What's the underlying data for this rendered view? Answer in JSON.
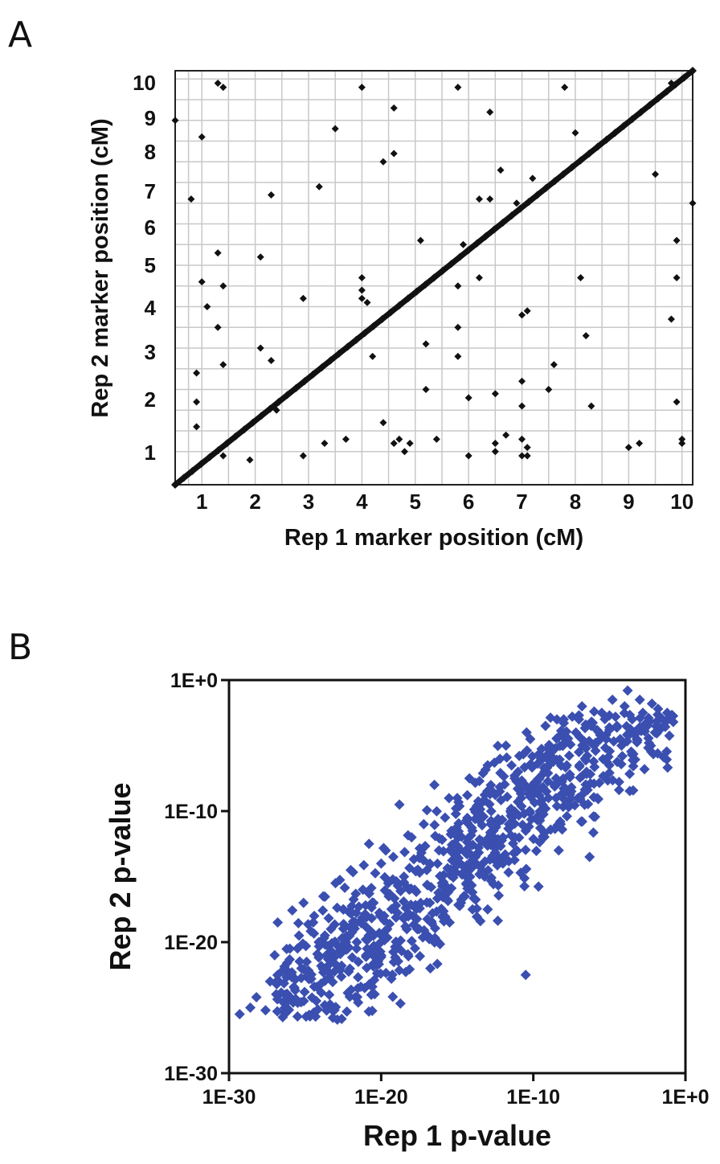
{
  "panels": {
    "a_label": "A",
    "b_label": "B"
  },
  "chart_data": [
    {
      "type": "scatter",
      "panel": "A",
      "title": "",
      "xlabel": "Rep 1 marker position (cM)",
      "ylabel": "Rep 2 marker position (cM)",
      "xlim": [
        0.5,
        10.2
      ],
      "ylim": [
        0.2,
        10.2
      ],
      "grid": true,
      "x_ticks": [
        1,
        2,
        3,
        4,
        5,
        6,
        7,
        8,
        9,
        10
      ],
      "y_ticks": [
        1,
        2,
        3,
        4,
        5,
        6,
        7,
        8,
        9,
        10
      ],
      "tick_labels_x": [
        "1",
        "2",
        "3",
        "4",
        "5",
        "6",
        "7",
        "8",
        "9",
        "10"
      ],
      "tick_labels_y": [
        "1",
        "2",
        "3",
        "4",
        "5",
        "6",
        "7",
        "8",
        "9",
        "10"
      ],
      "marker_color": "#111111",
      "diagonal": {
        "from": [
          0.5,
          0.2
        ],
        "to": [
          10.2,
          10.2
        ],
        "description_value": "dense markers along identity line"
      },
      "points": [
        [
          0.5,
          9.0
        ],
        [
          0.8,
          7.1
        ],
        [
          1.0,
          8.6
        ],
        [
          1.0,
          5.1
        ],
        [
          0.9,
          2.9
        ],
        [
          0.9,
          2.2
        ],
        [
          0.9,
          1.6
        ],
        [
          1.1,
          4.5
        ],
        [
          1.3,
          4.0
        ],
        [
          1.3,
          5.8
        ],
        [
          1.3,
          9.9
        ],
        [
          1.4,
          9.8
        ],
        [
          1.4,
          3.1
        ],
        [
          1.4,
          5.0
        ],
        [
          1.4,
          0.9
        ],
        [
          1.9,
          0.8
        ],
        [
          2.1,
          3.5
        ],
        [
          2.1,
          5.7
        ],
        [
          2.3,
          3.2
        ],
        [
          2.3,
          7.2
        ],
        [
          2.4,
          2.0
        ],
        [
          2.9,
          4.7
        ],
        [
          2.9,
          0.9
        ],
        [
          3.2,
          7.4
        ],
        [
          3.3,
          1.2
        ],
        [
          3.5,
          8.8
        ],
        [
          3.7,
          1.3
        ],
        [
          4.0,
          9.8
        ],
        [
          4.0,
          5.2
        ],
        [
          4.0,
          4.9
        ],
        [
          4.0,
          4.7
        ],
        [
          4.1,
          4.6
        ],
        [
          4.2,
          3.3
        ],
        [
          4.4,
          8.0
        ],
        [
          4.4,
          1.7
        ],
        [
          4.6,
          9.3
        ],
        [
          4.6,
          8.2
        ],
        [
          4.6,
          1.2
        ],
        [
          4.7,
          1.3
        ],
        [
          4.8,
          1.0
        ],
        [
          4.9,
          1.2
        ],
        [
          5.1,
          6.1
        ],
        [
          5.2,
          3.6
        ],
        [
          5.2,
          2.5
        ],
        [
          5.4,
          1.3
        ],
        [
          5.8,
          9.8
        ],
        [
          5.8,
          5.0
        ],
        [
          5.8,
          4.0
        ],
        [
          5.8,
          3.3
        ],
        [
          5.9,
          6.0
        ],
        [
          6.0,
          2.3
        ],
        [
          6.0,
          0.9
        ],
        [
          6.2,
          5.2
        ],
        [
          6.2,
          7.1
        ],
        [
          6.4,
          9.2
        ],
        [
          6.4,
          7.1
        ],
        [
          6.5,
          2.4
        ],
        [
          6.5,
          1.2
        ],
        [
          6.5,
          1.0
        ],
        [
          6.6,
          7.8
        ],
        [
          6.7,
          1.4
        ],
        [
          6.9,
          7.0
        ],
        [
          7.0,
          2.7
        ],
        [
          7.0,
          4.3
        ],
        [
          7.1,
          4.4
        ],
        [
          7.0,
          2.1
        ],
        [
          7.0,
          1.3
        ],
        [
          7.1,
          1.1
        ],
        [
          7.0,
          0.9
        ],
        [
          7.1,
          0.9
        ],
        [
          7.2,
          7.6
        ],
        [
          7.5,
          2.5
        ],
        [
          7.6,
          3.1
        ],
        [
          7.8,
          9.8
        ],
        [
          8.0,
          8.7
        ],
        [
          8.1,
          5.2
        ],
        [
          8.2,
          3.8
        ],
        [
          8.3,
          2.1
        ],
        [
          9.0,
          1.1
        ],
        [
          9.2,
          1.2
        ],
        [
          9.5,
          7.7
        ],
        [
          9.9,
          6.1
        ],
        [
          9.9,
          5.2
        ],
        [
          9.8,
          4.2
        ],
        [
          9.9,
          2.2
        ],
        [
          10.0,
          1.3
        ],
        [
          10.0,
          1.2
        ],
        [
          10.2,
          7.0
        ],
        [
          10.0,
          10.0
        ],
        [
          9.8,
          9.9
        ]
      ]
    },
    {
      "type": "scatter",
      "panel": "B",
      "title": "",
      "xlabel": "Rep 1 p-value",
      "ylabel": "Rep 2 p-value",
      "x_scale": "log",
      "y_scale": "log",
      "xlim": [
        1e-30,
        1
      ],
      "ylim": [
        1e-30,
        1
      ],
      "grid": false,
      "tick_labels_x": [
        "1E-30",
        "1E-20",
        "1E-10",
        "1E+0"
      ],
      "tick_labels_y": [
        "1E-30",
        "1E-20",
        "1E-10",
        "1E+0"
      ],
      "marker_color": "#3a4fb0",
      "points_log10": [
        [
          -29.3,
          -25.5
        ],
        [
          -28.6,
          -25.0
        ],
        [
          -28.2,
          -24.2
        ],
        [
          -27.6,
          -25.2
        ],
        [
          -27.3,
          -23.0
        ],
        [
          -27.0,
          -21.0
        ],
        [
          -26.8,
          -18.5
        ],
        [
          -26.5,
          -22.2
        ],
        [
          -26.3,
          -24.0
        ],
        [
          -26.0,
          -20.5
        ],
        [
          -25.7,
          -23.5
        ],
        [
          -25.4,
          -19.5
        ],
        [
          -25.1,
          -17.0
        ],
        [
          -24.9,
          -21.5
        ],
        [
          -24.6,
          -22.8
        ],
        [
          -24.4,
          -18.0
        ],
        [
          -24.1,
          -20.0
        ],
        [
          -23.8,
          -16.5
        ],
        [
          -23.6,
          -21.0
        ],
        [
          -23.3,
          -19.0
        ],
        [
          -23.0,
          -15.5
        ],
        [
          -22.8,
          -22.0
        ],
        [
          -22.5,
          -17.5
        ],
        [
          -22.2,
          -20.5
        ],
        [
          -22.0,
          -14.5
        ],
        [
          -21.7,
          -18.5
        ],
        [
          -21.5,
          -21.5
        ],
        [
          -21.2,
          -16.0
        ],
        [
          -21.0,
          -19.8
        ],
        [
          -20.8,
          -12.5
        ],
        [
          -20.5,
          -17.0
        ],
        [
          -20.2,
          -20.2
        ],
        [
          -20.0,
          -14.0
        ],
        [
          -19.8,
          -18.0
        ],
        [
          -19.5,
          -16.5
        ],
        [
          -19.2,
          -13.5
        ],
        [
          -19.0,
          -20.0
        ],
        [
          -18.8,
          -9.5
        ],
        [
          -18.5,
          -15.0
        ],
        [
          -18.2,
          -17.8
        ],
        [
          -18.0,
          -12.0
        ],
        [
          -17.8,
          -16.0
        ],
        [
          -17.5,
          -19.0
        ],
        [
          -17.2,
          -11.0
        ],
        [
          -17.0,
          -14.5
        ],
        [
          -16.8,
          -17.0
        ],
        [
          -16.5,
          -8.0
        ],
        [
          -16.2,
          -13.0
        ],
        [
          -16.0,
          -15.5
        ],
        [
          -15.8,
          -10.5
        ],
        [
          -15.5,
          -18.5
        ],
        [
          -15.2,
          -12.5
        ],
        [
          -15.0,
          -9.0
        ],
        [
          -14.8,
          -14.0
        ],
        [
          -14.5,
          -16.5
        ],
        [
          -14.2,
          -7.5
        ],
        [
          -14.0,
          -11.5
        ],
        [
          -13.8,
          -13.5
        ],
        [
          -13.5,
          -9.5
        ],
        [
          -13.2,
          -15.0
        ],
        [
          -13.0,
          -6.5
        ],
        [
          -12.8,
          -11.0
        ],
        [
          -12.5,
          -12.5
        ],
        [
          -12.2,
          -8.5
        ],
        [
          -12.0,
          -14.0
        ],
        [
          -11.8,
          -5.0
        ],
        [
          -11.5,
          -10.0
        ],
        [
          -11.2,
          -12.0
        ],
        [
          -11.0,
          -7.0
        ],
        [
          -10.8,
          -9.0
        ],
        [
          -10.5,
          -11.5
        ],
        [
          -10.2,
          -4.5
        ],
        [
          -10.0,
          -8.0
        ],
        [
          -9.8,
          -10.5
        ],
        [
          -9.5,
          -6.0
        ],
        [
          -9.2,
          -3.5
        ],
        [
          -9.0,
          -9.0
        ],
        [
          -8.8,
          -5.5
        ],
        [
          -8.5,
          -7.5
        ],
        [
          -8.2,
          -11.0
        ],
        [
          -8.0,
          -3.0
        ],
        [
          -7.8,
          -6.5
        ],
        [
          -7.5,
          -8.5
        ],
        [
          -7.2,
          -4.0
        ],
        [
          -7.0,
          -5.5
        ],
        [
          -6.8,
          -2.0
        ],
        [
          -6.5,
          -7.0
        ],
        [
          -6.2,
          -3.5
        ],
        [
          -6.0,
          -5.0
        ],
        [
          -5.8,
          -9.0
        ],
        [
          -5.5,
          -2.5
        ],
        [
          -5.2,
          -4.5
        ],
        [
          -5.0,
          -6.5
        ],
        [
          -4.8,
          -1.5
        ],
        [
          -4.5,
          -3.5
        ],
        [
          -4.2,
          -5.0
        ],
        [
          -4.0,
          -2.0
        ],
        [
          -3.8,
          -0.8
        ],
        [
          -3.5,
          -3.0
        ],
        [
          -3.2,
          -4.5
        ],
        [
          -3.0,
          -1.5
        ],
        [
          -2.8,
          -2.5
        ],
        [
          -2.5,
          -3.5
        ],
        [
          -2.2,
          -1.8
        ],
        [
          -2.0,
          -4.0
        ],
        [
          -1.8,
          -2.2
        ],
        [
          -1.5,
          -3.0
        ],
        [
          -1.2,
          -2.5
        ],
        [
          -1.0,
          -2.8
        ],
        [
          -0.8,
          -3.2
        ],
        [
          -16.0,
          -15.5
        ],
        [
          -15.6,
          -16.2
        ],
        [
          -17.4,
          -17.0
        ],
        [
          -18.4,
          -18.8
        ],
        [
          -19.6,
          -19.0
        ],
        [
          -20.6,
          -20.8
        ],
        [
          -21.6,
          -20.0
        ],
        [
          -22.6,
          -21.8
        ],
        [
          -23.4,
          -22.4
        ],
        [
          -24.4,
          -23.4
        ],
        [
          -14.6,
          -14.2
        ],
        [
          -13.6,
          -12.8
        ],
        [
          -12.6,
          -12.0
        ],
        [
          -11.6,
          -11.0
        ],
        [
          -10.6,
          -10.2
        ],
        [
          -9.6,
          -8.8
        ],
        [
          -8.6,
          -8.0
        ],
        [
          -7.6,
          -7.2
        ],
        [
          -6.6,
          -6.0
        ],
        [
          -5.6,
          -4.2
        ],
        [
          -6.3,
          -13.5
        ],
        [
          -10.5,
          -22.5
        ],
        [
          -13.0,
          -17.5
        ],
        [
          -16.8,
          -14.0
        ],
        [
          -4.6,
          -2.8
        ],
        [
          -5.0,
          -3.8
        ],
        [
          -6.0,
          -2.4
        ],
        [
          -7.0,
          -3.0
        ],
        [
          -3.0,
          -3.6
        ],
        [
          -2.4,
          -4.8
        ]
      ]
    }
  ]
}
